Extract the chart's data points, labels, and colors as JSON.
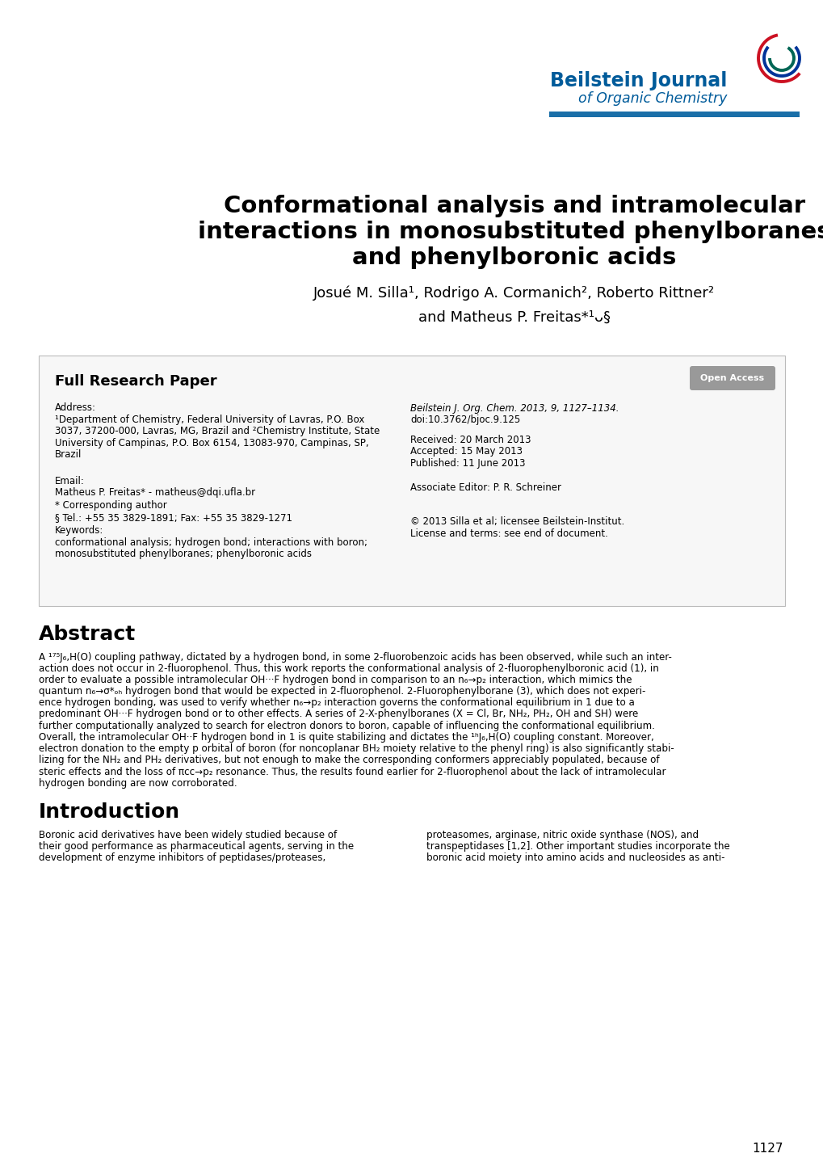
{
  "title_line1": "Conformational analysis and intramolecular",
  "title_line2": "interactions in monosubstituted phenylboranes",
  "title_line3": "and phenylboronic acids",
  "authors_line1": "Josué M. Silla¹, Rodrigo A. Cormanich², Roberto Rittner²",
  "authors_line2": "and Matheus P. Freitas*¹ᴗ§",
  "journal_name": "Beilstein Journal",
  "journal_subtitle": "of Organic Chemistry",
  "journal_color": "#005B9A",
  "blue_bar_color": "#1A6FA8",
  "box_bg": "#f7f7f7",
  "box_border": "#bbbbbb",
  "section_label": "Full Research Paper",
  "open_access_bg": "#999999",
  "open_access_text": "Open Access",
  "addr_label": "Address:",
  "addr_line1": "¹Department of Chemistry, Federal University of Lavras, P.O. Box",
  "addr_line2": "3037, 37200-000, Lavras, MG, Brazil and ²Chemistry Institute, State",
  "addr_line3": "University of Campinas, P.O. Box 6154, 13083-970, Campinas, SP,",
  "addr_line4": "Brazil",
  "email_label": "Email:",
  "email_line1": "Matheus P. Freitas* - matheus@dqi.ufla.br",
  "corresponding_label": "* Corresponding author",
  "tel_line": "§ Tel.: +55 35 3829-1891; Fax: +55 35 3829-1271",
  "keywords_label": "Keywords:",
  "keywords_line1": "conformational analysis; hydrogen bond; interactions with boron;",
  "keywords_line2": "monosubstituted phenylboranes; phenylboronic acids",
  "journal_ref_italic": "Beilstein J. Org. Chem.",
  "journal_ref_bold": " 2013,",
  "journal_ref_rest": " 9, 1127–1134.",
  "doi": "doi:10.3762/bjoc.9.125",
  "received": "Received: 20 March 2013",
  "accepted": "Accepted: 15 May 2013",
  "published": "Published: 11 June 2013",
  "assoc_editor": "Associate Editor: P. R. Schreiner",
  "copyright": "© 2013 Silla et al; licensee Beilstein-Institut.",
  "license": "License and terms: see end of document.",
  "abstract_title": "Abstract",
  "abstract_lines": [
    "A ¹⁷⁵J₆,H(O) coupling pathway, dictated by a hydrogen bond, in some 2-fluorobenzoic acids has been observed, while such an inter-",
    "action does not occur in 2-fluorophenol. Thus, this work reports the conformational analysis of 2-fluorophenylboronic acid (1), in",
    "order to evaluate a possible intramolecular OH···F hydrogen bond in comparison to an n₆→p₂ interaction, which mimics the",
    "quantum n₆→σ*ₒₕ hydrogen bond that would be expected in 2-fluorophenol. 2-Fluorophenylborane (3), which does not experi-",
    "ence hydrogen bonding, was used to verify whether n₆→p₂ interaction governs the conformational equilibrium in 1 due to a",
    "predominant OH···F hydrogen bond or to other effects. A series of 2-X-phenylboranes (X = Cl, Br, NH₂, PH₂, OH and SH) were",
    "further computationally analyzed to search for electron donors to boron, capable of influencing the conformational equilibrium.",
    "Overall, the intramolecular OH··F hydrogen bond in 1 is quite stabilizing and dictates the ¹ʰJ₆,H(O) coupling constant. Moreover,",
    "electron donation to the empty p orbital of boron (for noncoplanar BH₂ moiety relative to the phenyl ring) is also significantly stabi-",
    "lizing for the NH₂ and PH₂ derivatives, but not enough to make the corresponding conformers appreciably populated, because of",
    "steric effects and the loss of πᴄᴄ→p₂ resonance. Thus, the results found earlier for 2-fluorophenol about the lack of intramolecular",
    "hydrogen bonding are now corroborated."
  ],
  "intro_title": "Introduction",
  "intro_col1": [
    "Boronic acid derivatives have been widely studied because of",
    "their good performance as pharmaceutical agents, serving in the",
    "development of enzyme inhibitors of peptidases/proteases,"
  ],
  "intro_col2": [
    "proteasomes, arginase, nitric oxide synthase (NOS), and",
    "transpeptidases [1,2]. Other important studies incorporate the",
    "boronic acid moiety into amino acids and nucleosides as anti-"
  ],
  "page_number": "1127",
  "bg_color": "#ffffff"
}
